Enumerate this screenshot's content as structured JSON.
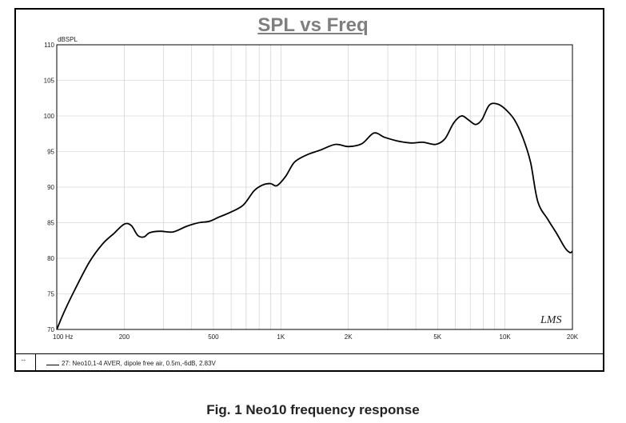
{
  "chart_data": {
    "type": "line",
    "title": "SPL vs Freq",
    "ylabel": "dBSPL",
    "xlabel": "",
    "x_scale": "log",
    "xlim": [
      100,
      20000
    ],
    "ylim": [
      70,
      110
    ],
    "grid": true,
    "x_ticks": [
      {
        "value": 100,
        "label": "100  Hz"
      },
      {
        "value": 200,
        "label": "200"
      },
      {
        "value": 500,
        "label": "500"
      },
      {
        "value": 1000,
        "label": "1K"
      },
      {
        "value": 2000,
        "label": "2K"
      },
      {
        "value": 5000,
        "label": "5K"
      },
      {
        "value": 10000,
        "label": "10K"
      },
      {
        "value": 20000,
        "label": "20K"
      }
    ],
    "y_ticks": [
      {
        "value": 110,
        "label": "110"
      },
      {
        "value": 105,
        "label": "105"
      },
      {
        "value": 100,
        "label": "100"
      },
      {
        "value": 95,
        "label": "95"
      },
      {
        "value": 90,
        "label": "90"
      },
      {
        "value": 85,
        "label": "85"
      },
      {
        "value": 80,
        "label": "80"
      },
      {
        "value": 75,
        "label": "75"
      },
      {
        "value": 70,
        "label": "70"
      }
    ],
    "series": [
      {
        "name": "27: Neo10,1-4 AVER, dipole free air, 0.5m,-6dB, 2.83V",
        "color": "#000000",
        "x": [
          100,
          108,
          120,
          140,
          160,
          180,
          200,
          215,
          230,
          245,
          260,
          290,
          330,
          380,
          430,
          480,
          530,
          600,
          680,
          760,
          830,
          900,
          960,
          1050,
          1150,
          1300,
          1500,
          1750,
          2000,
          2300,
          2600,
          2900,
          3300,
          3800,
          4300,
          4900,
          5400,
          5900,
          6400,
          6900,
          7400,
          7900,
          8500,
          9200,
          10000,
          11000,
          12000,
          13000,
          14000,
          15500,
          17000,
          18500,
          19500,
          20000
        ],
        "y": [
          70,
          72.5,
          75.5,
          79.5,
          82,
          83.5,
          84.8,
          84.6,
          83.2,
          83,
          83.6,
          83.8,
          83.7,
          84.5,
          85,
          85.2,
          85.8,
          86.5,
          87.5,
          89.5,
          90.3,
          90.5,
          90.2,
          91.5,
          93.5,
          94.5,
          95.2,
          96,
          95.7,
          96.1,
          97.6,
          97,
          96.5,
          96.2,
          96.3,
          96,
          96.8,
          99,
          100,
          99.4,
          98.8,
          99.5,
          101.5,
          101.7,
          101,
          99.5,
          97,
          93.5,
          88,
          85.5,
          83.5,
          81.5,
          80.8,
          81
        ]
      }
    ],
    "annotations": [
      "LMS"
    ]
  },
  "legend": {
    "handle": "↕",
    "text": "27: Neo10,1-4 AVER, dipole free air, 0.5m,-6dB, 2.83V"
  },
  "caption": "Fig. 1  Neo10 frequency response"
}
